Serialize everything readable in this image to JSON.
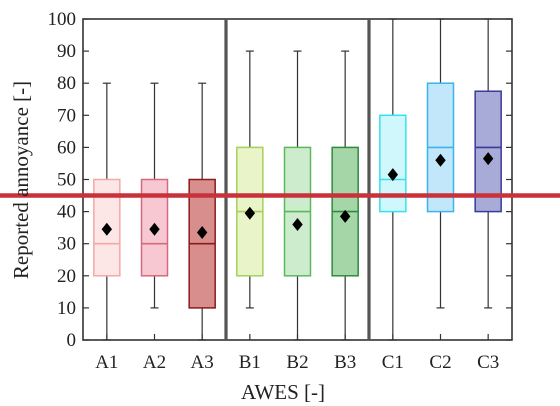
{
  "chart_data": {
    "type": "boxplot",
    "xlabel": "AWES [-]",
    "ylabel": "Reported annoyance [-]",
    "ylim": [
      0,
      100
    ],
    "yticks": [
      0,
      10,
      20,
      30,
      40,
      50,
      60,
      70,
      80,
      90,
      100
    ],
    "categories": [
      "A1",
      "A2",
      "A3",
      "B1",
      "B2",
      "B3",
      "C1",
      "C2",
      "C3"
    ],
    "groups": [
      {
        "categories": [
          "A1",
          "A2",
          "A3"
        ]
      },
      {
        "categories": [
          "B1",
          "B2",
          "B3"
        ]
      },
      {
        "categories": [
          "C1",
          "C2",
          "C3"
        ]
      }
    ],
    "boxes": [
      {
        "label": "A1",
        "min": 0,
        "q1": 20,
        "median": 30,
        "q3": 50,
        "max": 80,
        "mean": 34.5,
        "color": "#f4a8a4",
        "fill": "#fde6e6"
      },
      {
        "label": "A2",
        "min": 10,
        "q1": 20,
        "median": 30,
        "q3": 50,
        "max": 80,
        "mean": 34.5,
        "color": "#d46a7e",
        "fill": "#f7c8d2"
      },
      {
        "label": "A3",
        "min": 0,
        "q1": 10,
        "median": 30,
        "q3": 50,
        "max": 80,
        "mean": 33.5,
        "color": "#8b1a1a",
        "fill": "#d98e8e"
      },
      {
        "label": "B1",
        "min": 10,
        "q1": 20,
        "median": 40,
        "q3": 60,
        "max": 90,
        "mean": 39.5,
        "color": "#a6cf5a",
        "fill": "#e9f5c9"
      },
      {
        "label": "B2",
        "min": 0,
        "q1": 20,
        "median": 40,
        "q3": 60,
        "max": 90,
        "mean": 36,
        "color": "#5cb85c",
        "fill": "#cdeccd"
      },
      {
        "label": "B3",
        "min": 0,
        "q1": 20,
        "median": 40,
        "q3": 60,
        "max": 90,
        "mean": 38.5,
        "color": "#2e8b3e",
        "fill": "#a4d6a8"
      },
      {
        "label": "C1",
        "min": 0,
        "q1": 40,
        "median": 50,
        "q3": 70,
        "max": 100,
        "mean": 51.5,
        "color": "#33e1f1",
        "fill": "#d0f7fb"
      },
      {
        "label": "C2",
        "min": 10,
        "q1": 40,
        "median": 60,
        "q3": 80,
        "max": 100,
        "mean": 56,
        "color": "#3ab4ee",
        "fill": "#c3e7fa"
      },
      {
        "label": "C3",
        "min": 10,
        "q1": 40,
        "median": 60,
        "q3": 77.5,
        "max": 100,
        "mean": 56.5,
        "color": "#3a3a9a",
        "fill": "#a8abd8"
      }
    ],
    "reference_line": {
      "y": 45,
      "color": "#c8323a"
    },
    "grid": false,
    "legend": "none"
  }
}
